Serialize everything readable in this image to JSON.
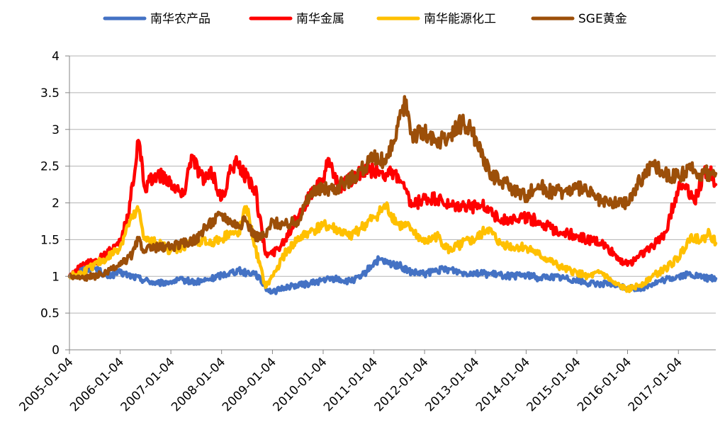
{
  "chart_data": {
    "type": "line",
    "title": "",
    "xlabel": "",
    "ylabel": "",
    "ylim": [
      0,
      4
    ],
    "yticks": [
      "0",
      "0.5",
      "1",
      "1.5",
      "2",
      "2.5",
      "3",
      "3.5",
      "4"
    ],
    "xlim": [
      "2005-01-04",
      "2017-09-30"
    ],
    "xticks": [
      "2005-01-04",
      "2006-01-04",
      "2007-01-04",
      "2008-01-04",
      "2009-01-04",
      "2010-01-04",
      "2011-01-04",
      "2012-01-04",
      "2013-01-04",
      "2014-01-04",
      "2015-01-04",
      "2016-01-04",
      "2017-01-04"
    ],
    "grid": true,
    "legend_position": "top",
    "series": [
      {
        "name": "南华农产品",
        "color": "#4472C4",
        "x": [
          "2005-01-04",
          "2005-04-01",
          "2005-07-01",
          "2005-10-01",
          "2006-01-04",
          "2006-04-01",
          "2006-07-01",
          "2006-10-01",
          "2007-01-04",
          "2007-04-01",
          "2007-07-01",
          "2007-10-01",
          "2008-01-04",
          "2008-03-01",
          "2008-05-01",
          "2008-07-01",
          "2008-09-01",
          "2008-11-15",
          "2009-01-04",
          "2009-04-01",
          "2009-07-01",
          "2009-10-01",
          "2010-01-04",
          "2010-04-01",
          "2010-07-01",
          "2010-10-01",
          "2011-01-04",
          "2011-02-15",
          "2011-04-01",
          "2011-07-01",
          "2011-10-01",
          "2012-01-04",
          "2012-04-01",
          "2012-07-01",
          "2012-10-01",
          "2013-01-04",
          "2013-04-01",
          "2013-07-01",
          "2013-10-01",
          "2014-01-04",
          "2014-04-01",
          "2014-07-01",
          "2014-10-01",
          "2015-01-04",
          "2015-04-01",
          "2015-07-01",
          "2015-10-01",
          "2016-01-04",
          "2016-04-01",
          "2016-07-01",
          "2016-10-01",
          "2017-01-04",
          "2017-04-01",
          "2017-07-01",
          "2017-09-30"
        ],
        "values": [
          1.0,
          1.1,
          1.12,
          1.0,
          1.05,
          1.0,
          0.95,
          0.9,
          0.93,
          0.95,
          0.92,
          0.95,
          1.02,
          1.05,
          1.08,
          1.05,
          1.05,
          0.85,
          0.78,
          0.85,
          0.88,
          0.9,
          0.95,
          0.97,
          0.93,
          0.98,
          1.18,
          1.23,
          1.18,
          1.15,
          1.05,
          1.03,
          1.08,
          1.1,
          1.05,
          1.05,
          1.03,
          1.02,
          1.0,
          1.02,
          0.98,
          1.0,
          0.98,
          0.95,
          0.9,
          0.9,
          0.88,
          0.85,
          0.83,
          0.9,
          0.95,
          1.0,
          1.03,
          0.98,
          0.97
        ]
      },
      {
        "name": "南华金属",
        "color": "#FF0000",
        "x": [
          "2005-01-04",
          "2005-04-01",
          "2005-07-01",
          "2005-10-01",
          "2006-01-04",
          "2006-03-01",
          "2006-05-15",
          "2006-07-01",
          "2006-10-01",
          "2007-01-04",
          "2007-04-01",
          "2007-06-01",
          "2007-09-01",
          "2007-11-01",
          "2008-01-04",
          "2008-03-01",
          "2008-05-01",
          "2008-07-01",
          "2008-09-01",
          "2008-11-15",
          "2009-01-04",
          "2009-04-01",
          "2009-07-01",
          "2009-10-01",
          "2010-01-04",
          "2010-02-15",
          "2010-05-01",
          "2010-07-01",
          "2010-10-01",
          "2011-01-04",
          "2011-04-01",
          "2011-07-01",
          "2011-10-01",
          "2012-01-04",
          "2012-04-01",
          "2012-07-01",
          "2012-10-01",
          "2013-01-04",
          "2013-04-01",
          "2013-07-01",
          "2013-10-01",
          "2014-01-04",
          "2014-04-01",
          "2014-07-01",
          "2014-10-01",
          "2015-01-04",
          "2015-04-01",
          "2015-07-01",
          "2015-10-01",
          "2016-01-04",
          "2016-04-01",
          "2016-07-01",
          "2016-10-01",
          "2017-01-04",
          "2017-03-01",
          "2017-05-01",
          "2017-07-01",
          "2017-08-15",
          "2017-09-30"
        ],
        "values": [
          1.0,
          1.15,
          1.2,
          1.3,
          1.5,
          1.8,
          2.85,
          2.2,
          2.4,
          2.3,
          2.1,
          2.65,
          2.3,
          2.4,
          2.05,
          2.4,
          2.55,
          2.35,
          2.2,
          1.3,
          1.3,
          1.5,
          1.8,
          2.1,
          2.3,
          2.6,
          2.2,
          2.3,
          2.4,
          2.45,
          2.4,
          2.35,
          1.95,
          2.05,
          2.05,
          1.95,
          1.95,
          1.95,
          1.95,
          1.75,
          1.8,
          1.8,
          1.75,
          1.65,
          1.6,
          1.55,
          1.5,
          1.45,
          1.3,
          1.15,
          1.3,
          1.4,
          1.6,
          2.2,
          2.25,
          2.0,
          2.4,
          2.45,
          2.25
        ]
      },
      {
        "name": "南华能源化工",
        "color": "#FFC000",
        "x": [
          "2005-01-04",
          "2005-04-01",
          "2005-07-01",
          "2005-10-01",
          "2006-01-04",
          "2006-03-01",
          "2006-05-15",
          "2006-07-01",
          "2006-10-01",
          "2007-01-04",
          "2007-04-01",
          "2007-07-01",
          "2007-10-01",
          "2008-01-04",
          "2008-03-01",
          "2008-05-01",
          "2008-07-01",
          "2008-09-01",
          "2008-11-15",
          "2009-01-04",
          "2009-04-01",
          "2009-07-01",
          "2009-10-01",
          "2010-01-04",
          "2010-04-01",
          "2010-07-01",
          "2010-10-01",
          "2011-01-04",
          "2011-04-01",
          "2011-07-01",
          "2011-10-01",
          "2012-01-04",
          "2012-04-01",
          "2012-07-01",
          "2012-10-01",
          "2013-01-04",
          "2013-04-01",
          "2013-07-01",
          "2013-10-01",
          "2014-01-04",
          "2014-04-01",
          "2014-07-01",
          "2014-10-01",
          "2015-01-04",
          "2015-04-01",
          "2015-07-01",
          "2015-10-01",
          "2016-01-04",
          "2016-04-01",
          "2016-07-01",
          "2016-10-01",
          "2017-01-04",
          "2017-04-01",
          "2017-07-01",
          "2017-08-15",
          "2017-09-30"
        ],
        "values": [
          1.0,
          1.05,
          1.15,
          1.25,
          1.4,
          1.7,
          1.9,
          1.5,
          1.45,
          1.35,
          1.4,
          1.5,
          1.45,
          1.5,
          1.6,
          1.55,
          1.95,
          1.4,
          0.85,
          1.0,
          1.3,
          1.5,
          1.6,
          1.7,
          1.65,
          1.55,
          1.65,
          1.8,
          1.95,
          1.7,
          1.65,
          1.45,
          1.55,
          1.35,
          1.45,
          1.5,
          1.65,
          1.45,
          1.4,
          1.4,
          1.3,
          1.2,
          1.1,
          1.05,
          1.0,
          1.05,
          0.9,
          0.82,
          0.88,
          1.0,
          1.1,
          1.25,
          1.55,
          1.5,
          1.6,
          1.45
        ]
      },
      {
        "name": "SGE黄金",
        "color": "#9C4F09",
        "x": [
          "2005-01-04",
          "2005-04-01",
          "2005-07-01",
          "2005-10-01",
          "2006-01-04",
          "2006-04-01",
          "2006-05-15",
          "2006-07-01",
          "2006-10-01",
          "2007-01-04",
          "2007-04-01",
          "2007-07-01",
          "2007-10-01",
          "2008-01-04",
          "2008-03-15",
          "2008-05-01",
          "2008-07-01",
          "2008-09-01",
          "2008-11-15",
          "2009-01-04",
          "2009-04-01",
          "2009-07-01",
          "2009-10-01",
          "2010-01-04",
          "2010-04-01",
          "2010-07-01",
          "2010-10-01",
          "2011-01-04",
          "2011-04-01",
          "2011-06-01",
          "2011-08-25",
          "2011-10-01",
          "2012-01-04",
          "2012-04-01",
          "2012-07-01",
          "2012-10-01",
          "2013-01-04",
          "2013-04-15",
          "2013-07-01",
          "2013-10-01",
          "2014-01-04",
          "2014-04-01",
          "2014-07-01",
          "2014-10-01",
          "2015-01-04",
          "2015-04-01",
          "2015-07-01",
          "2015-10-01",
          "2016-01-04",
          "2016-04-01",
          "2016-07-01",
          "2016-10-01",
          "2017-01-04",
          "2017-04-01",
          "2017-07-01",
          "2017-09-30"
        ],
        "values": [
          1.0,
          0.98,
          1.0,
          1.05,
          1.15,
          1.3,
          1.5,
          1.35,
          1.4,
          1.4,
          1.45,
          1.5,
          1.7,
          1.85,
          1.75,
          1.7,
          1.75,
          1.55,
          1.55,
          1.75,
          1.7,
          1.75,
          2.1,
          2.2,
          2.2,
          2.3,
          2.45,
          2.6,
          2.55,
          2.85,
          3.4,
          2.95,
          2.95,
          2.8,
          2.9,
          3.1,
          2.9,
          2.4,
          2.3,
          2.2,
          2.1,
          2.25,
          2.15,
          2.15,
          2.2,
          2.15,
          2.0,
          2.0,
          2.0,
          2.3,
          2.55,
          2.4,
          2.35,
          2.45,
          2.4,
          2.4
        ]
      }
    ]
  }
}
